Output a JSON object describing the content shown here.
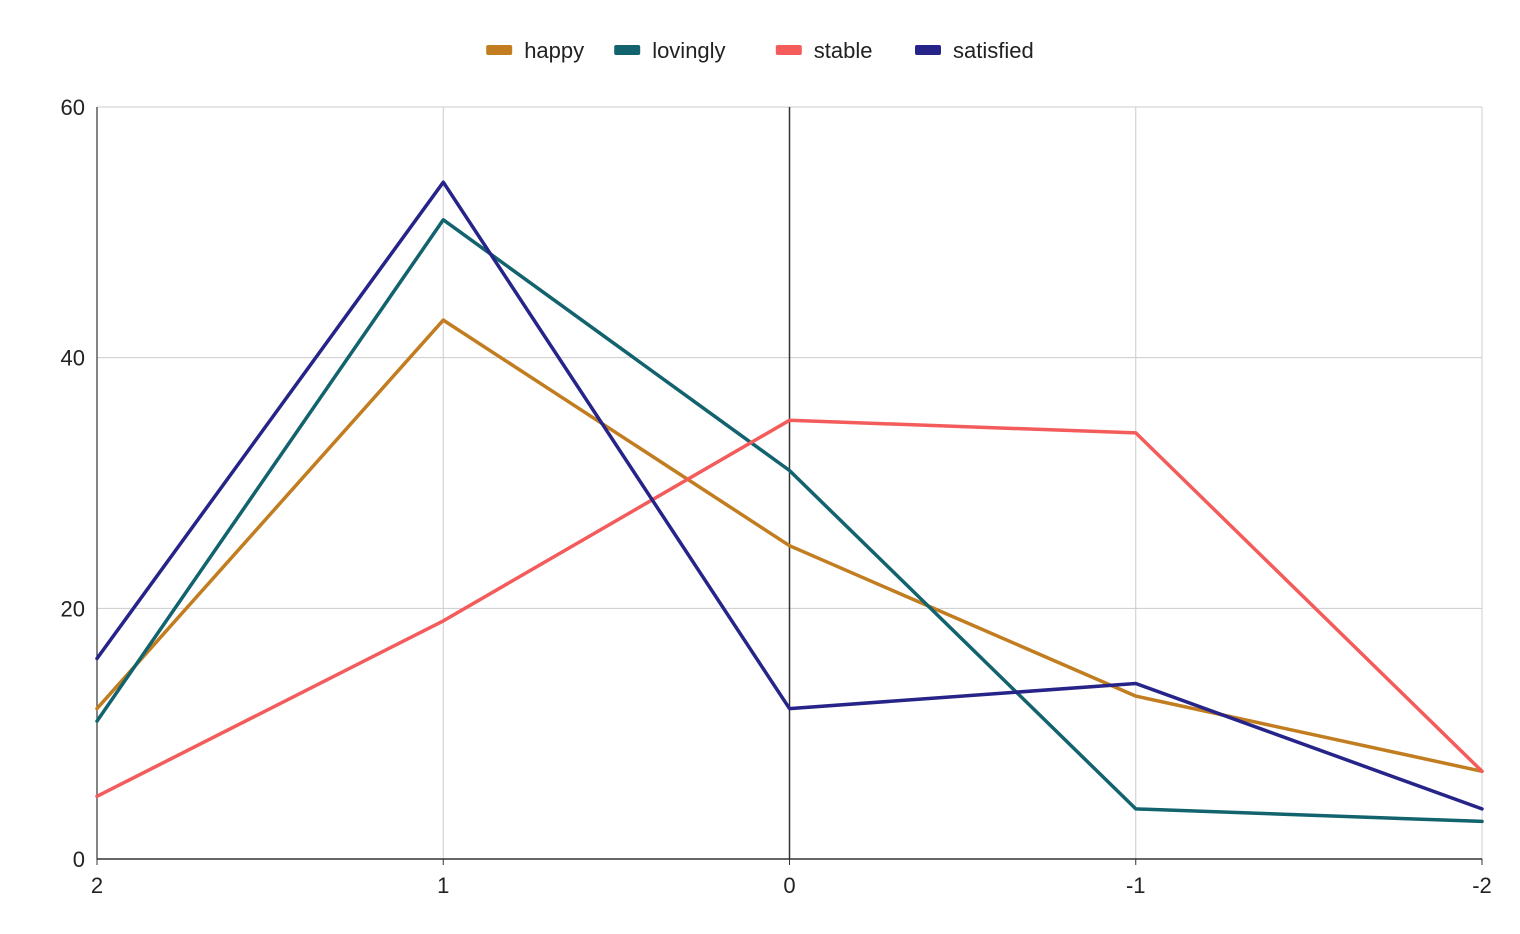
{
  "chart_data": {
    "type": "line",
    "title": "",
    "xlabel": "",
    "ylabel": "",
    "x": [
      "2",
      "1",
      "0",
      "-1",
      "-2"
    ],
    "ylim": [
      0,
      60
    ],
    "y_ticks": [
      "0",
      "20",
      "40",
      "60"
    ],
    "grid": true,
    "legend_position": "top",
    "series": [
      {
        "name": "happy",
        "color": "#c17d1f",
        "values": [
          12,
          43,
          25,
          13,
          7
        ]
      },
      {
        "name": "lovingly",
        "color": "#12636e",
        "values": [
          11,
          51,
          31,
          4,
          3
        ]
      },
      {
        "name": "stable",
        "color": "#f45b5b",
        "values": [
          5,
          19,
          35,
          34,
          7
        ]
      },
      {
        "name": "satisfied",
        "color": "#262488",
        "values": [
          16,
          54,
          12,
          14,
          4
        ]
      }
    ]
  }
}
